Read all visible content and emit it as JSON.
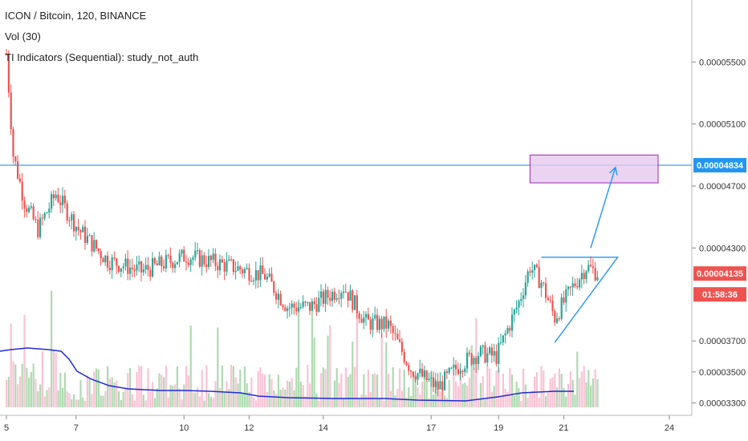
{
  "header": {
    "symbol_line": "ICON / Bitcoin, 120, BINANCE",
    "volume_line": "Vol (30)",
    "indicator_line": "TI Indicators (Sequential): study_not_auth"
  },
  "price_tags": {
    "resistance": "0.00004834",
    "current": "0.00004135",
    "countdown": "01:58:36"
  },
  "colors": {
    "up": "#26a69a",
    "down": "#ef5350",
    "vol_up": "#a5d6a7",
    "vol_down": "#f8bbd0",
    "line": "#2196f3",
    "vol_ma": "#1f2bd3",
    "target_fill": "#e6c9ef",
    "target_stroke": "#9c27b0",
    "tag_red": "#ef5350",
    "tag_blue": "#2196f3"
  },
  "chart_data": {
    "type": "candlestick",
    "title": "ICON / Bitcoin, 120, BINANCE",
    "x_tick_labels": [
      "5",
      "7",
      "10",
      "12",
      "14",
      "17",
      "19",
      "21",
      "24"
    ],
    "y_tick_labels": [
      "0.00005500",
      "0.00005100",
      "0.00004700",
      "0.00004300",
      "0.00003700",
      "0.00003500",
      "0.00003300"
    ],
    "y_range": [
      3.22e-05,
      5.9e-05
    ],
    "horizontal_line_price": 4.834e-05,
    "last_price": 4.135e-05,
    "volume_indicator": "Vol (30)",
    "price_path_anchors": [
      {
        "t": 0,
        "price": 5.55e-05
      },
      {
        "t": 3,
        "price": 4.9e-05
      },
      {
        "t": 8,
        "price": 4.6e-05
      },
      {
        "t": 14,
        "price": 4.42e-05
      },
      {
        "t": 22,
        "price": 4.65e-05
      },
      {
        "t": 32,
        "price": 4.42e-05
      },
      {
        "t": 45,
        "price": 4.22e-05
      },
      {
        "t": 60,
        "price": 4.15e-05
      },
      {
        "t": 80,
        "price": 4.25e-05
      },
      {
        "t": 100,
        "price": 4.18e-05
      },
      {
        "t": 115,
        "price": 4.12e-05
      },
      {
        "t": 125,
        "price": 3.92e-05
      },
      {
        "t": 135,
        "price": 3.92e-05
      },
      {
        "t": 150,
        "price": 4.05e-05
      },
      {
        "t": 160,
        "price": 3.82e-05
      },
      {
        "t": 170,
        "price": 3.8e-05
      },
      {
        "t": 180,
        "price": 3.52e-05
      },
      {
        "t": 192,
        "price": 3.4e-05
      },
      {
        "t": 202,
        "price": 3.55e-05
      },
      {
        "t": 210,
        "price": 3.62e-05
      },
      {
        "t": 218,
        "price": 3.6e-05
      },
      {
        "t": 228,
        "price": 3.95e-05
      },
      {
        "t": 233,
        "price": 4.18e-05
      },
      {
        "t": 238,
        "price": 4.08e-05
      },
      {
        "t": 244,
        "price": 3.85e-05
      },
      {
        "t": 252,
        "price": 4.05e-05
      },
      {
        "t": 258,
        "price": 4.18e-05
      },
      {
        "t": 263,
        "price": 4.14e-05
      }
    ],
    "triangle_pattern": {
      "top_left": {
        "t": 238,
        "price": 4.24e-05
      },
      "top_right": {
        "t": 272,
        "price": 4.24e-05
      },
      "bottom": {
        "t": 244,
        "price": 3.69e-05
      }
    },
    "target_box": {
      "t_start": 233,
      "t_end": 290,
      "price_top": 4.9e-05,
      "price_bottom": 4.72e-05
    },
    "target_arrow": {
      "from": {
        "t": 260,
        "price": 4.3e-05
      },
      "to": {
        "t": 271,
        "price": 4.82e-05
      }
    }
  }
}
